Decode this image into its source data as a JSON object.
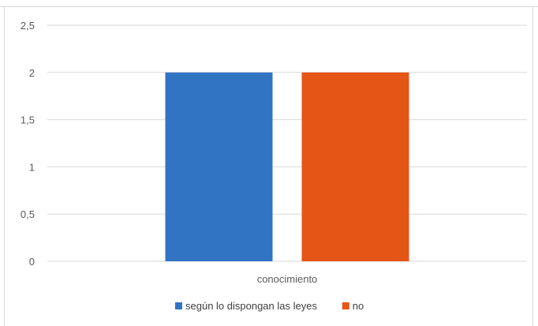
{
  "chart_data": {
    "type": "bar",
    "categories": [
      "conocimiento"
    ],
    "series": [
      {
        "name": "según lo dispongan las leyes",
        "values": [
          2
        ],
        "color": "#3174c4"
      },
      {
        "name": "no",
        "values": [
          2
        ],
        "color": "#e45516"
      }
    ],
    "yticks": [
      "0",
      "0,5",
      "1",
      "1,5",
      "2",
      "2,5"
    ],
    "ylim": [
      0,
      2.5
    ],
    "grid": true,
    "legend_position": "bottom"
  }
}
